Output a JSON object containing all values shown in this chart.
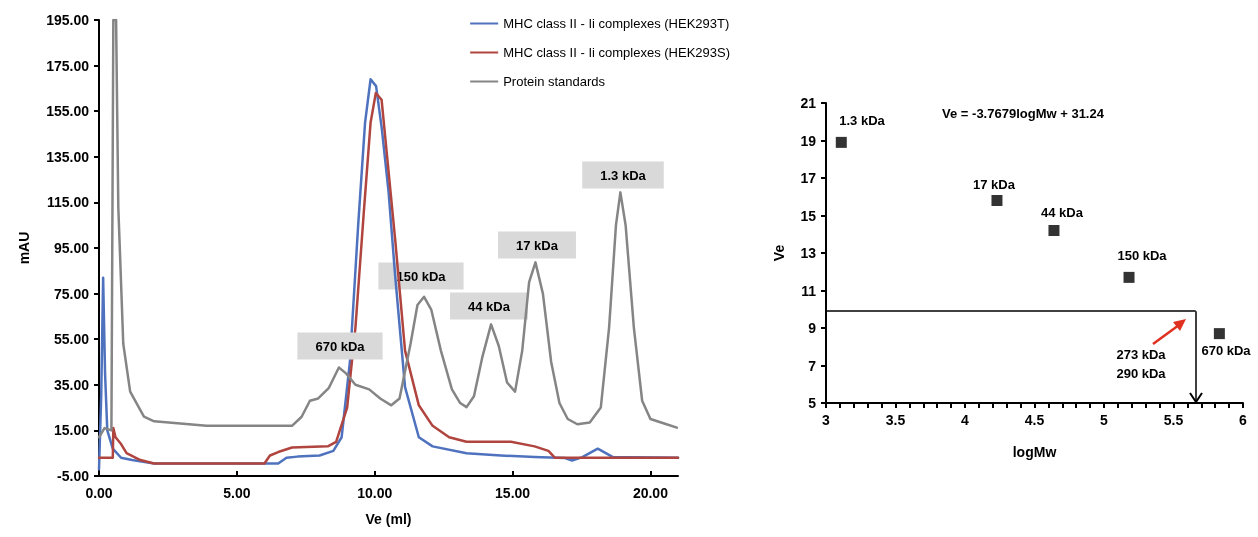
{
  "chart_data": [
    {
      "type": "line",
      "xlabel": "Ve (ml)",
      "ylabel": "mAU",
      "xlim": [
        0,
        21
      ],
      "ylim": [
        -5,
        195
      ],
      "xticks": [
        {
          "value": 0,
          "label": "0.00"
        },
        {
          "value": 5,
          "label": "5.00"
        },
        {
          "value": 10,
          "label": "10.00"
        },
        {
          "value": 15,
          "label": "15.00"
        },
        {
          "value": 20,
          "label": "20.00"
        }
      ],
      "yticks": [
        {
          "value": -5,
          "label": "-5.00"
        },
        {
          "value": 15,
          "label": "15.00"
        },
        {
          "value": 35,
          "label": "35.00"
        },
        {
          "value": 55,
          "label": "55.00"
        },
        {
          "value": 75,
          "label": "75.00"
        },
        {
          "value": 95,
          "label": "95.00"
        },
        {
          "value": 115,
          "label": "115.00"
        },
        {
          "value": 135,
          "label": "135.00"
        },
        {
          "value": 155,
          "label": "155.00"
        },
        {
          "value": 175,
          "label": "175.00"
        },
        {
          "value": 195,
          "label": "195.00"
        }
      ],
      "legend": "top right",
      "marker": "none",
      "series": [
        {
          "name": "MHC class II - Ii complexes (HEK293T)",
          "color": "#4f72be",
          "x": [
            0,
            0.08,
            0.15,
            0.22,
            0.3,
            0.5,
            0.8,
            1.2,
            2,
            6.5,
            6.8,
            7.2,
            8,
            8.5,
            8.8,
            9.1,
            9.4,
            9.65,
            9.85,
            10.05,
            10.26,
            10.5,
            10.74,
            11.1,
            11.6,
            12.1,
            13.33,
            14.57,
            15.8,
            16.9,
            17.16,
            17.53,
            18.09,
            18.64,
            21
          ],
          "values": [
            -2,
            30,
            82,
            40,
            15,
            7,
            3,
            2,
            0.5,
            0.5,
            3,
            3.5,
            4,
            6,
            12,
            45,
            105,
            150,
            169,
            166,
            147,
            120,
            83,
            34,
            12,
            8,
            5,
            4,
            3.3,
            2.9,
            1.8,
            3.3,
            7,
            3.3,
            3
          ]
        },
        {
          "name": "MHC class II - Ii complexes (HEK293S)",
          "color": "#b0453f",
          "x": [
            0,
            0.5,
            0.52,
            0.6,
            0.8,
            1,
            1.5,
            2,
            6,
            6.2,
            6.5,
            7,
            8.3,
            8.6,
            9,
            9.3,
            9.6,
            9.85,
            10.04,
            10.25,
            10.74,
            11.1,
            11.6,
            12.1,
            12.7,
            13.33,
            14.94,
            15.8,
            16.3,
            16.54,
            21
          ],
          "values": [
            3,
            3,
            16,
            12,
            9,
            5,
            2,
            0.5,
            0.5,
            4,
            5.5,
            7.5,
            8,
            10,
            25,
            60,
            110,
            150,
            163,
            160,
            99,
            50,
            26,
            17,
            12,
            10,
            10,
            8,
            6,
            3,
            3
          ]
        },
        {
          "name": "Protein standards",
          "color": "#858585",
          "x": [
            0,
            0.2,
            0.45,
            0.52,
            0.62,
            0.7,
            0.88,
            1.13,
            1.63,
            2,
            3.9,
            7,
            7.35,
            7.65,
            7.95,
            8.33,
            8.7,
            8.96,
            9.3,
            9.8,
            10.2,
            10.6,
            10.9,
            11.3,
            11.55,
            11.79,
            12.05,
            12.4,
            12.8,
            13.1,
            13.33,
            13.6,
            13.9,
            14.22,
            14.5,
            14.8,
            15.09,
            15.35,
            15.6,
            15.83,
            16.1,
            16.4,
            16.7,
            17,
            17.35,
            17.8,
            18.2,
            18.5,
            18.75,
            18.91,
            19.1,
            19.4,
            19.7,
            20,
            20.5,
            20.96
          ],
          "values": [
            12,
            16,
            15,
            195,
            195,
            113,
            53,
            32,
            21,
            19,
            17,
            17,
            21,
            28,
            29,
            33.5,
            42.6,
            40,
            35,
            33,
            29,
            26,
            29,
            53,
            70,
            73.6,
            68,
            50,
            33,
            27,
            25.2,
            30,
            47,
            61.5,
            52,
            36,
            32,
            50,
            80,
            88.7,
            75,
            45,
            27,
            20,
            17.7,
            18.5,
            25,
            60,
            105,
            119.4,
            105,
            60,
            28,
            20,
            18,
            16.2
          ]
        }
      ],
      "annotations": [
        "670 kDa",
        "150 kDa",
        "44 kDa",
        "17 kDa",
        "1.3 kDa"
      ]
    },
    {
      "type": "scatter",
      "xlabel": "logMw",
      "ylabel": "Ve",
      "xlim": [
        3,
        6
      ],
      "ylim": [
        5,
        21
      ],
      "xticks": [
        3,
        {
          "value": 3.1,
          "label": null
        },
        {
          "value": 3.2,
          "label": null
        },
        {
          "value": 3.3,
          "label": null
        },
        {
          "value": 3.4,
          "label": null
        },
        3.5,
        {
          "value": 3.6,
          "label": null
        },
        {
          "value": 3.7,
          "label": null
        },
        {
          "value": 3.8,
          "label": null
        },
        {
          "value": 3.9,
          "label": null
        },
        4,
        {
          "value": 4.1,
          "label": null
        },
        {
          "value": 4.2,
          "label": null
        },
        {
          "value": 4.3,
          "label": null
        },
        {
          "value": 4.4,
          "label": null
        },
        4.5,
        {
          "value": 4.6,
          "label": null
        },
        {
          "value": 4.7,
          "label": null
        },
        {
          "value": 4.8,
          "label": null
        },
        {
          "value": 4.9,
          "label": null
        },
        5,
        {
          "value": 5.1,
          "label": null
        },
        {
          "value": 5.2,
          "label": null
        },
        {
          "value": 5.3,
          "label": null
        },
        {
          "value": 5.4,
          "label": null
        },
        5.5,
        {
          "value": 5.6,
          "label": null
        },
        {
          "value": 5.7,
          "label": null
        },
        {
          "value": 5.8,
          "label": null
        },
        {
          "value": 5.9,
          "label": null
        },
        6
      ],
      "yticks": [
        5,
        7,
        9,
        11,
        13,
        15,
        17,
        19,
        21
      ],
      "marker": "square",
      "series": [
        {
          "color": "#000000",
          "x": [
            3.11,
            4.23,
            4.64,
            5.18,
            5.83
          ],
          "values": [
            18.9,
            15.8,
            14.2,
            11.7,
            8.7
          ]
        }
      ],
      "ref_lines": [
        {
          "axis": "y",
          "value": 9.9,
          "color": "#000000"
        },
        {
          "axis": "x",
          "value": 5.66,
          "color": "#000000"
        }
      ],
      "annotations": [
        "Ve = -3.7679logMw + 31.24",
        "1.3 kDa",
        "17 kDa",
        "44 kDa",
        "150 kDa",
        "670 kDa",
        "273 kDa",
        "290 kDa"
      ]
    }
  ]
}
